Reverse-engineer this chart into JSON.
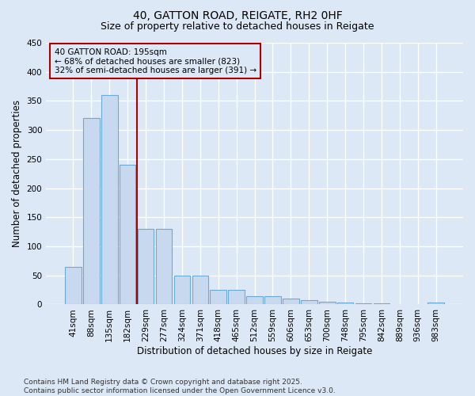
{
  "title": "40, GATTON ROAD, REIGATE, RH2 0HF",
  "subtitle": "Size of property relative to detached houses in Reigate",
  "xlabel": "Distribution of detached houses by size in Reigate",
  "ylabel": "Number of detached properties",
  "categories": [
    "41sqm",
    "88sqm",
    "135sqm",
    "182sqm",
    "229sqm",
    "277sqm",
    "324sqm",
    "371sqm",
    "418sqm",
    "465sqm",
    "512sqm",
    "559sqm",
    "606sqm",
    "653sqm",
    "700sqm",
    "748sqm",
    "795sqm",
    "842sqm",
    "889sqm",
    "936sqm",
    "983sqm"
  ],
  "values": [
    65,
    320,
    360,
    240,
    130,
    130,
    50,
    50,
    25,
    25,
    14,
    14,
    10,
    8,
    5,
    4,
    2,
    2,
    1,
    1,
    3
  ],
  "bar_color": "#c8d9ef",
  "bar_edge_color": "#6aaad4",
  "background_color": "#dce8f5",
  "grid_color": "#ffffff",
  "red_line_x": 3.5,
  "red_line_color": "#aa0000",
  "annotation_text": "40 GATTON ROAD: 195sqm\n← 68% of detached houses are smaller (823)\n32% of semi-detached houses are larger (391) →",
  "ylim": [
    0,
    450
  ],
  "yticks": [
    0,
    50,
    100,
    150,
    200,
    250,
    300,
    350,
    400,
    450
  ],
  "footnote": "Contains HM Land Registry data © Crown copyright and database right 2025.\nContains public sector information licensed under the Open Government Licence v3.0.",
  "title_fontsize": 10,
  "subtitle_fontsize": 9,
  "xlabel_fontsize": 8.5,
  "ylabel_fontsize": 8.5,
  "tick_fontsize": 7.5,
  "footnote_fontsize": 6.5
}
